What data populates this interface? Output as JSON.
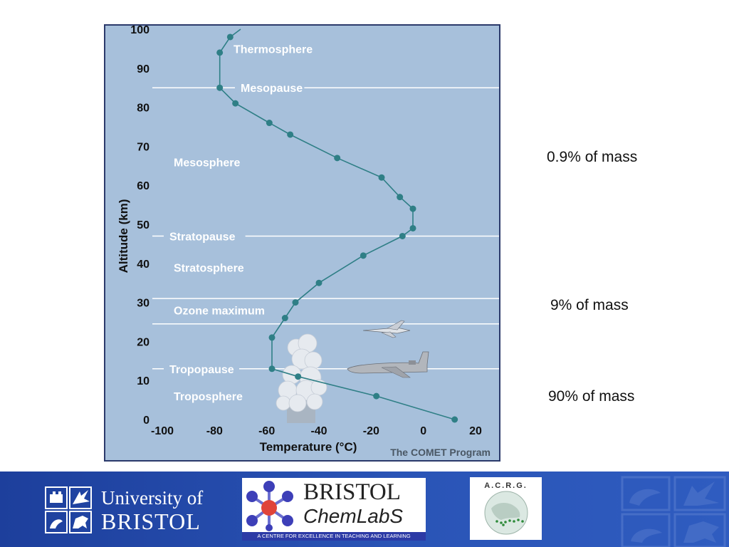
{
  "chart_data": {
    "type": "line",
    "xlabel": "Temperature (°C)",
    "ylabel": "Altitude (km)",
    "xlim": [
      -100,
      20
    ],
    "ylim": [
      0,
      100
    ],
    "x_ticks": [
      "-100",
      "-80",
      "-60",
      "-40",
      "-20",
      "0",
      "20"
    ],
    "y_ticks": [
      "0",
      "10",
      "20",
      "30",
      "40",
      "50",
      "60",
      "70",
      "80",
      "90",
      "100"
    ],
    "grid": false,
    "series": [
      {
        "points": [
          {
            "x": 12,
            "y": 0
          },
          {
            "x": -18,
            "y": 6
          },
          {
            "x": -48,
            "y": 11
          },
          {
            "x": -58,
            "y": 13
          },
          {
            "x": -58,
            "y": 21
          },
          {
            "x": -53,
            "y": 26
          },
          {
            "x": -49,
            "y": 30
          },
          {
            "x": -40,
            "y": 35
          },
          {
            "x": -23,
            "y": 42
          },
          {
            "x": -8,
            "y": 47
          },
          {
            "x": -4,
            "y": 49
          },
          {
            "x": -4,
            "y": 54
          },
          {
            "x": -9,
            "y": 57
          },
          {
            "x": -16,
            "y": 62
          },
          {
            "x": -33,
            "y": 67
          },
          {
            "x": -51,
            "y": 73
          },
          {
            "x": -59,
            "y": 76
          },
          {
            "x": -72,
            "y": 81
          },
          {
            "x": -78,
            "y": 85
          },
          {
            "x": -78,
            "y": 94
          },
          {
            "x": -74,
            "y": 98
          },
          {
            "x": -70,
            "y": 100
          }
        ]
      }
    ],
    "boundaries": [
      {
        "label": "Mesopause",
        "altitude": 85
      },
      {
        "label": "Stratopause",
        "altitude": 47
      },
      {
        "label": "",
        "altitude": 31
      },
      {
        "label": "",
        "altitude": 24.5
      },
      {
        "label": "Tropopause",
        "altitude": 13
      }
    ],
    "layer_labels": [
      {
        "label": "Thermosphere",
        "altitude": 95
      },
      {
        "label": "Mesosphere",
        "altitude": 66
      },
      {
        "label": "Stratosphere",
        "altitude": 39
      },
      {
        "label": "Ozone maximum",
        "altitude": 28
      },
      {
        "label": "Troposphere",
        "altitude": 6
      }
    ],
    "credit": "The COMET Program"
  },
  "colors": {
    "plot_background": "#a7c0db",
    "line": "#2f7f86",
    "boundary_lines": "#ffffff",
    "footer": "#2a54b6"
  },
  "annotations": {
    "upper_mass": "0.9% of mass",
    "middle_mass": "9% of mass",
    "lower_mass": "90% of mass"
  },
  "logos": {
    "university": {
      "line1": "University of",
      "line2": "BRISTOL"
    },
    "chemlabs": {
      "line1": "BRISTOL",
      "line2": "ChemLabS",
      "tagline": "A CENTRE FOR EXCELLENCE IN TEACHING AND LEARNING"
    },
    "acrg": {
      "text": "A.C.R.G."
    }
  },
  "icons": [
    "cloud-icon",
    "fighter-jet-icon",
    "airliner-icon",
    "university-crest-icon",
    "molecule-icon",
    "globe-icon"
  ]
}
